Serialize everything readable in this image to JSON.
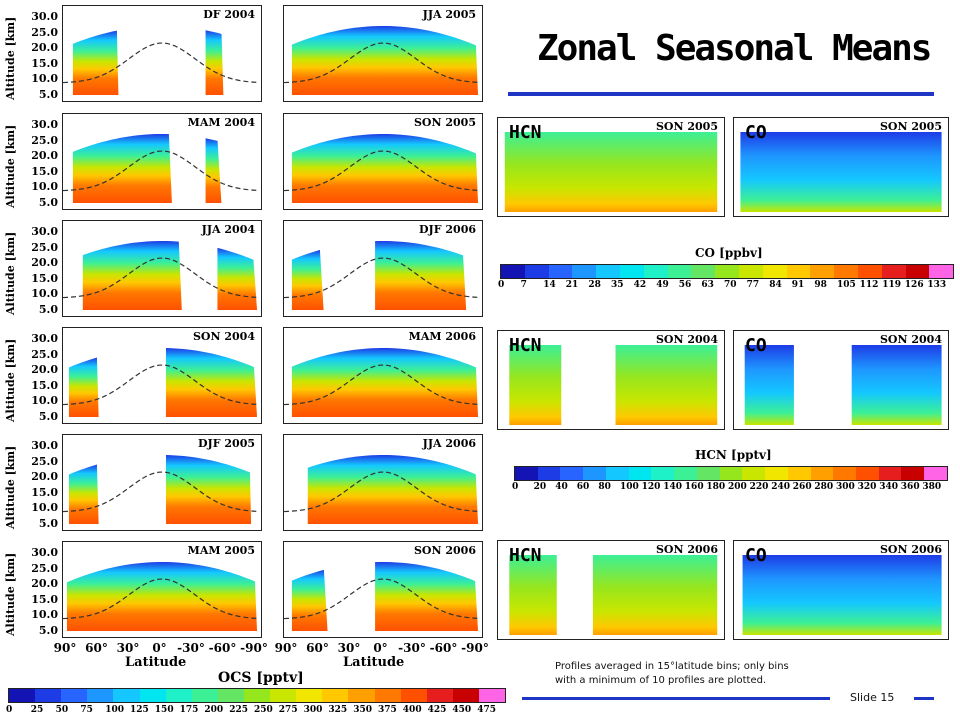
{
  "slide": {
    "title": "Zonal Seasonal Means",
    "slide_number": "Slide 15",
    "note_line1": "Profiles averaged in 15°latitude bins; only bins",
    "note_line2": "with a minimum of 10 profiles are plotted."
  },
  "colors": {
    "accent_blue": "#1f35c4"
  },
  "labels": {
    "hcn": "HCN",
    "co": "CO",
    "ylabel": "Altitude [km]",
    "xlabel": "Latitude"
  },
  "chart_data": [
    {
      "type": "heatmap",
      "description_variable": "OCS",
      "panels": [
        "DF 2004",
        "JJA 2005",
        "MAM 2004",
        "SON 2005",
        "JJA 2004",
        "DJF 2006",
        "SON 2004",
        "MAM 2006",
        "DJF 2005",
        "JJA 2006",
        "MAM 2005",
        "SON 2006"
      ],
      "ylabel": "Altitude [km]",
      "y_ticks": [
        "30.0",
        "25.0",
        "20.0",
        "15.0",
        "10.0",
        "5.0"
      ],
      "xlabel": "Latitude",
      "x_ticks": [
        "90°",
        "60°",
        "30°",
        "0°",
        "-30°",
        "-60°",
        "-90°"
      ],
      "colorbar": {
        "label": "OCS [pptv]",
        "ticks": [
          "0",
          "25",
          "50",
          "75",
          "100",
          "125",
          "150",
          "175",
          "200",
          "225",
          "250",
          "275",
          "300",
          "325",
          "350",
          "375",
          "400",
          "425",
          "450",
          "475"
        ]
      }
    },
    {
      "type": "heatmap",
      "description_variable": "HCN / CO",
      "panels": [
        "SON 2005",
        "SON 2005",
        "SON 2004",
        "SON 2004",
        "SON 2006",
        "SON 2006"
      ],
      "colorbar": {
        "label": "CO [ppbv]",
        "ticks": [
          "0",
          "7",
          "14",
          "21",
          "28",
          "35",
          "42",
          "49",
          "56",
          "63",
          "70",
          "77",
          "84",
          "91",
          "98",
          "105",
          "112",
          "119",
          "126",
          "133"
        ]
      }
    },
    {
      "type": "heatmap",
      "colorbar": {
        "label": "HCN [pptv]",
        "ticks": [
          "0",
          "20",
          "40",
          "60",
          "80",
          "100",
          "120",
          "140",
          "160",
          "180",
          "200",
          "220",
          "240",
          "260",
          "280",
          "300",
          "320",
          "340",
          "360",
          "380"
        ]
      }
    }
  ],
  "palette": [
    "#1414b4",
    "#1e3ce6",
    "#2864ff",
    "#1e96ff",
    "#14c8ff",
    "#00e6f0",
    "#1ef0c8",
    "#3cf096",
    "#64e664",
    "#96e61e",
    "#c8e600",
    "#f0e600",
    "#ffc800",
    "#ffa000",
    "#ff7800",
    "#ff5000",
    "#e61e1e",
    "#c80000",
    "#ff64e6"
  ]
}
